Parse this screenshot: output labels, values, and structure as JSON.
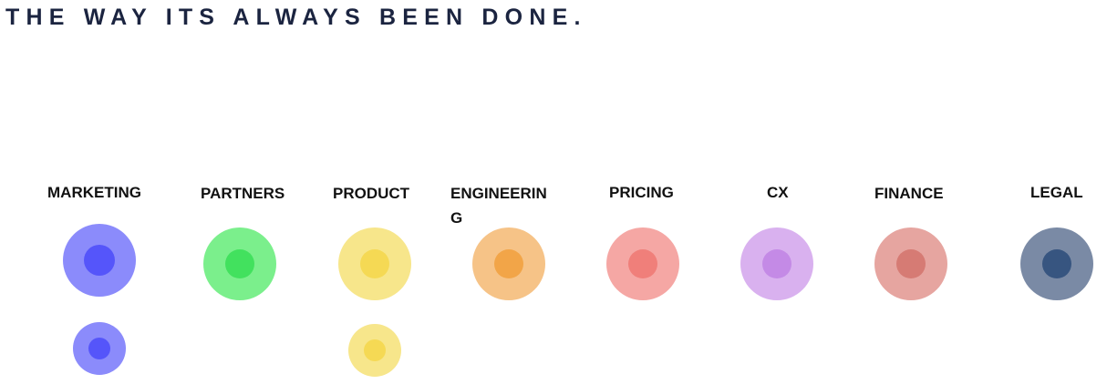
{
  "headline": "THE WAY ITS ALWAYS BEEN DONE.",
  "departments": [
    {
      "label": "MARKETING",
      "outer": "#8b8bfb",
      "inner": "#5555fa",
      "count": 2
    },
    {
      "label": "PARTNERS",
      "outer": "#7bef8c",
      "inner": "#42e15e",
      "count": 1
    },
    {
      "label": "PRODUCT",
      "outer": "#f7e68b",
      "inner": "#f5d954",
      "count": 2
    },
    {
      "label": "ENGINEERING",
      "outer": "#f6c387",
      "inner": "#f2a548",
      "count": 1
    },
    {
      "label": "PRICING",
      "outer": "#f5a7a4",
      "inner": "#f07f7a",
      "count": 1
    },
    {
      "label": "CX",
      "outer": "#d9b1ef",
      "inner": "#c48ae6",
      "count": 1
    },
    {
      "label": "FINANCE",
      "outer": "#e6a5a0",
      "inner": "#d67b74",
      "count": 1
    },
    {
      "label": "LEGAL",
      "outer": "#7a8aa5",
      "inner": "#375580",
      "count": 1
    }
  ]
}
